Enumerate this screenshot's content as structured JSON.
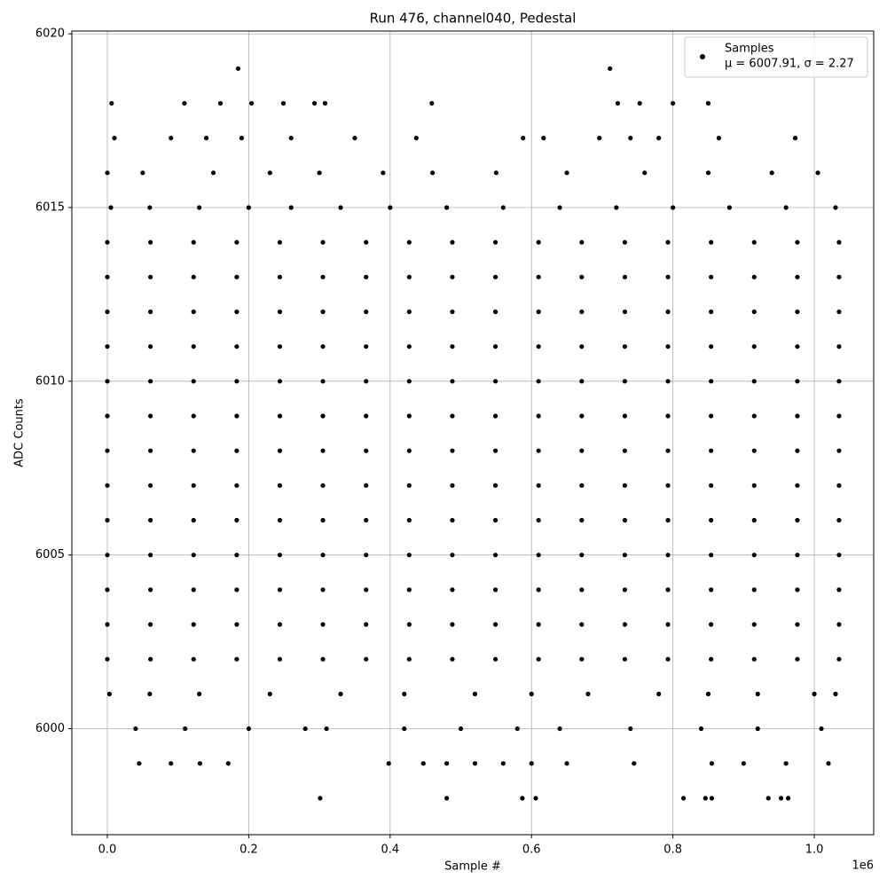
{
  "chart_data": {
    "type": "scatter",
    "title": "Run 476, channel040, Pedestal",
    "x_label": "Sample #",
    "y_label": "ADC Counts",
    "x_offset_label": "1e6",
    "legend": {
      "name": "Samples",
      "stats": "μ = 6007.91, σ = 2.27",
      "corner": "upper right"
    },
    "color": "#000000",
    "grid": true,
    "xlim": [
      -50200,
      1084000
    ],
    "ylim": [
      5996.95,
      6020.08
    ],
    "xticks": [
      {
        "value": 0,
        "label": "0.0"
      },
      {
        "value": 200000,
        "label": "0.2"
      },
      {
        "value": 400000,
        "label": "0.4"
      },
      {
        "value": 600000,
        "label": "0.6"
      },
      {
        "value": 800000,
        "label": "0.8"
      },
      {
        "value": 1000000,
        "label": "1.0"
      }
    ],
    "yticks": [
      6000,
      6005,
      6010,
      6015,
      6020
    ],
    "x": [
      0,
      61000,
      122000,
      183000,
      244000,
      305000,
      366000,
      427000,
      488000,
      549000,
      610000,
      671000,
      732000,
      793000,
      854000,
      915000,
      976000,
      1035000,
      0,
      61000,
      122000,
      183000,
      244000,
      305000,
      366000,
      427000,
      488000,
      549000,
      610000,
      671000,
      732000,
      793000,
      854000,
      915000,
      976000,
      1035000,
      0,
      61000,
      122000,
      183000,
      244000,
      305000,
      366000,
      427000,
      488000,
      549000,
      610000,
      671000,
      732000,
      793000,
      854000,
      915000,
      976000,
      1035000,
      0,
      61000,
      122000,
      183000,
      244000,
      305000,
      366000,
      427000,
      488000,
      549000,
      610000,
      671000,
      732000,
      793000,
      854000,
      915000,
      976000,
      1035000,
      0,
      61000,
      122000,
      183000,
      244000,
      305000,
      366000,
      427000,
      488000,
      549000,
      610000,
      671000,
      732000,
      793000,
      854000,
      915000,
      976000,
      1035000,
      0,
      61000,
      122000,
      183000,
      244000,
      305000,
      366000,
      427000,
      488000,
      549000,
      610000,
      671000,
      732000,
      793000,
      854000,
      915000,
      976000,
      1035000,
      0,
      61000,
      122000,
      183000,
      244000,
      305000,
      366000,
      427000,
      488000,
      549000,
      610000,
      671000,
      732000,
      793000,
      854000,
      915000,
      976000,
      1035000,
      0,
      61000,
      122000,
      183000,
      244000,
      305000,
      366000,
      427000,
      488000,
      549000,
      610000,
      671000,
      732000,
      793000,
      854000,
      915000,
      976000,
      1035000,
      0,
      61000,
      122000,
      183000,
      244000,
      305000,
      366000,
      427000,
      488000,
      549000,
      610000,
      671000,
      732000,
      793000,
      854000,
      915000,
      976000,
      1035000,
      0,
      61000,
      122000,
      183000,
      244000,
      305000,
      366000,
      427000,
      488000,
      549000,
      610000,
      671000,
      732000,
      793000,
      854000,
      915000,
      976000,
      1035000,
      0,
      61000,
      122000,
      183000,
      244000,
      305000,
      366000,
      427000,
      488000,
      549000,
      610000,
      671000,
      732000,
      793000,
      854000,
      915000,
      976000,
      1035000,
      0,
      61000,
      122000,
      183000,
      244000,
      305000,
      366000,
      427000,
      488000,
      549000,
      610000,
      671000,
      732000,
      793000,
      854000,
      915000,
      976000,
      1035000,
      0,
      61000,
      122000,
      183000,
      244000,
      305000,
      366000,
      427000,
      488000,
      549000,
      610000,
      671000,
      732000,
      793000,
      854000,
      915000,
      976000,
      1035000,
      5000,
      60000,
      130000,
      200000,
      260000,
      330000,
      400000,
      480000,
      560000,
      640000,
      720000,
      800000,
      880000,
      960000,
      1030000,
      3000,
      60000,
      130000,
      230000,
      330000,
      420000,
      520000,
      600000,
      680000,
      780000,
      850000,
      920000,
      1000000,
      1030000,
      0,
      50000,
      150000,
      230000,
      300000,
      390000,
      460000,
      550000,
      650000,
      760000,
      850000,
      940000,
      1005000,
      40000,
      110000,
      200000,
      280000,
      310000,
      420000,
      500000,
      580000,
      640000,
      740000,
      840000,
      920000,
      1010000,
      10000,
      90000,
      140000,
      190000,
      260000,
      350000,
      437000,
      588000,
      617000,
      696000,
      740000,
      780000,
      865000,
      973000,
      45000,
      90000,
      131000,
      171000,
      398000,
      447000,
      480000,
      520000,
      560000,
      600000,
      650000,
      745000,
      855000,
      900000,
      960000,
      1020000,
      6000,
      109000,
      160000,
      204000,
      249000,
      293000,
      308000,
      459000,
      722000,
      753000,
      800000,
      850000,
      301000,
      480000,
      587000,
      606000,
      815000,
      846000,
      855000,
      935000,
      953000,
      963000,
      185000,
      711000
    ],
    "values": [
      6014,
      6014,
      6014,
      6014,
      6014,
      6014,
      6014,
      6014,
      6014,
      6014,
      6014,
      6014,
      6014,
      6014,
      6014,
      6014,
      6014,
      6014,
      6013,
      6013,
      6013,
      6013,
      6013,
      6013,
      6013,
      6013,
      6013,
      6013,
      6013,
      6013,
      6013,
      6013,
      6013,
      6013,
      6013,
      6013,
      6012,
      6012,
      6012,
      6012,
      6012,
      6012,
      6012,
      6012,
      6012,
      6012,
      6012,
      6012,
      6012,
      6012,
      6012,
      6012,
      6012,
      6012,
      6011,
      6011,
      6011,
      6011,
      6011,
      6011,
      6011,
      6011,
      6011,
      6011,
      6011,
      6011,
      6011,
      6011,
      6011,
      6011,
      6011,
      6011,
      6010,
      6010,
      6010,
      6010,
      6010,
      6010,
      6010,
      6010,
      6010,
      6010,
      6010,
      6010,
      6010,
      6010,
      6010,
      6010,
      6010,
      6010,
      6009,
      6009,
      6009,
      6009,
      6009,
      6009,
      6009,
      6009,
      6009,
      6009,
      6009,
      6009,
      6009,
      6009,
      6009,
      6009,
      6009,
      6009,
      6008,
      6008,
      6008,
      6008,
      6008,
      6008,
      6008,
      6008,
      6008,
      6008,
      6008,
      6008,
      6008,
      6008,
      6008,
      6008,
      6008,
      6008,
      6007,
      6007,
      6007,
      6007,
      6007,
      6007,
      6007,
      6007,
      6007,
      6007,
      6007,
      6007,
      6007,
      6007,
      6007,
      6007,
      6007,
      6007,
      6006,
      6006,
      6006,
      6006,
      6006,
      6006,
      6006,
      6006,
      6006,
      6006,
      6006,
      6006,
      6006,
      6006,
      6006,
      6006,
      6006,
      6006,
      6005,
      6005,
      6005,
      6005,
      6005,
      6005,
      6005,
      6005,
      6005,
      6005,
      6005,
      6005,
      6005,
      6005,
      6005,
      6005,
      6005,
      6005,
      6004,
      6004,
      6004,
      6004,
      6004,
      6004,
      6004,
      6004,
      6004,
      6004,
      6004,
      6004,
      6004,
      6004,
      6004,
      6004,
      6004,
      6004,
      6003,
      6003,
      6003,
      6003,
      6003,
      6003,
      6003,
      6003,
      6003,
      6003,
      6003,
      6003,
      6003,
      6003,
      6003,
      6003,
      6003,
      6003,
      6002,
      6002,
      6002,
      6002,
      6002,
      6002,
      6002,
      6002,
      6002,
      6002,
      6002,
      6002,
      6002,
      6002,
      6002,
      6002,
      6002,
      6002,
      6015,
      6015,
      6015,
      6015,
      6015,
      6015,
      6015,
      6015,
      6015,
      6015,
      6015,
      6015,
      6015,
      6015,
      6015,
      6001,
      6001,
      6001,
      6001,
      6001,
      6001,
      6001,
      6001,
      6001,
      6001,
      6001,
      6001,
      6001,
      6001,
      6016,
      6016,
      6016,
      6016,
      6016,
      6016,
      6016,
      6016,
      6016,
      6016,
      6016,
      6016,
      6016,
      6000,
      6000,
      6000,
      6000,
      6000,
      6000,
      6000,
      6000,
      6000,
      6000,
      6000,
      6000,
      6000,
      6017,
      6017,
      6017,
      6017,
      6017,
      6017,
      6017,
      6017,
      6017,
      6017,
      6017,
      6017,
      6017,
      6017,
      5999,
      5999,
      5999,
      5999,
      5999,
      5999,
      5999,
      5999,
      5999,
      5999,
      5999,
      5999,
      5999,
      5999,
      5999,
      5999,
      6018,
      6018,
      6018,
      6018,
      6018,
      6018,
      6018,
      6018,
      6018,
      6018,
      6018,
      6018,
      5998,
      5998,
      5998,
      5998,
      5998,
      5998,
      5998,
      5998,
      5998,
      5998,
      6019,
      6019
    ]
  }
}
